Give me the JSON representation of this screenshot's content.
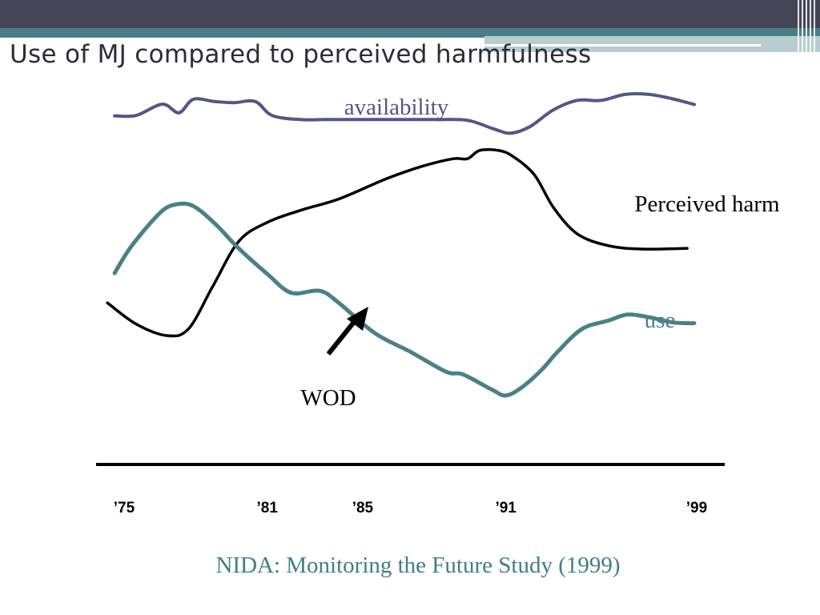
{
  "slide": {
    "title": "Use of MJ compared to perceived harmfulness",
    "source": "NIDA: Monitoring the Future Study (1999)"
  },
  "colors": {
    "header_dark": "#454558",
    "header_teal": "#4a7f86",
    "header_light": "#b7cdd0",
    "availability": "#555587",
    "perceived_harm": "#000000",
    "use": "#4a8088",
    "source_text": "#3d7f86"
  },
  "chart_data": {
    "type": "line",
    "title": "",
    "xlabel": "",
    "ylabel": "",
    "x_ticks": [
      "’75",
      "’81",
      "’85",
      "’91",
      "’99"
    ],
    "x_tick_years": [
      1975,
      1981,
      1985,
      1991,
      1999
    ],
    "xlim": [
      1975,
      1999
    ],
    "ylim": [
      0,
      100
    ],
    "y_axis_visible": false,
    "grid": false,
    "legend": "none (series labelled directly on the lines)",
    "series": [
      {
        "name": "availability",
        "color": "#555587",
        "x": [
          1974.6,
          1975.5,
          1976.6,
          1977.3,
          1977.9,
          1978.8,
          1979.6,
          1980.5,
          1981.2,
          1982.4,
          1983.5,
          1985.0,
          1986.5,
          1988.0,
          1989.4,
          1990.5,
          1991.2,
          1992.0,
          1993.0,
          1994.0,
          1995.0,
          1996.0,
          1997.0,
          1998.0,
          1998.9
        ],
        "y": [
          90.5,
          90.6,
          93.6,
          91.3,
          94.9,
          94.3,
          94.0,
          94.3,
          90.6,
          89.5,
          89.5,
          89.5,
          89.5,
          89.5,
          89.3,
          87.0,
          85.9,
          87.6,
          92.1,
          94.6,
          94.6,
          96.2,
          96.2,
          95.0,
          93.5
        ]
      },
      {
        "name": "Perceived harm",
        "color": "#000000",
        "x": [
          1974.3,
          1975.5,
          1976.8,
          1977.7,
          1978.7,
          1979.8,
          1981.0,
          1982.5,
          1984.0,
          1986.0,
          1987.5,
          1988.8,
          1989.4,
          1989.9,
          1990.7,
          1991.3,
          1992.2,
          1993.0,
          1994.0,
          1995.3,
          1996.7,
          1998.6
        ],
        "y": [
          40.8,
          35.2,
          32.1,
          33.9,
          45.0,
          57.1,
          62.2,
          65.6,
          68.4,
          73.8,
          77.1,
          79.1,
          79.1,
          81.3,
          81.3,
          79.7,
          74.8,
          66.1,
          59.1,
          56.0,
          55.1,
          55.3
        ]
      },
      {
        "name": "use",
        "color": "#4a8088",
        "x": [
          1974.6,
          1975.3,
          1976.5,
          1977.2,
          1977.9,
          1978.8,
          1979.8,
          1981.0,
          1982.0,
          1983.2,
          1984.0,
          1985.5,
          1987.0,
          1988.5,
          1989.2,
          1990.4,
          1991.0,
          1991.7,
          1992.5,
          1993.2,
          1994.2,
          1995.3,
          1996.1,
          1997.0,
          1998.0,
          1998.9
        ],
        "y": [
          48.7,
          55.8,
          64.7,
          67.0,
          66.5,
          61.9,
          55.3,
          48.5,
          43.5,
          44.0,
          40.8,
          32.8,
          27.8,
          22.5,
          21.8,
          17.8,
          16.2,
          18.5,
          23.0,
          28.0,
          33.9,
          36.1,
          37.7,
          37.0,
          35.6,
          35.4
        ]
      }
    ],
    "annotations": [
      {
        "text": "availability",
        "near": "above availability line"
      },
      {
        "text": "Perceived harm",
        "near": "right end of perceived harm line"
      },
      {
        "text": "use",
        "near": "right end of use line"
      },
      {
        "text": "WOD",
        "points_to_year": 1985
      }
    ]
  }
}
